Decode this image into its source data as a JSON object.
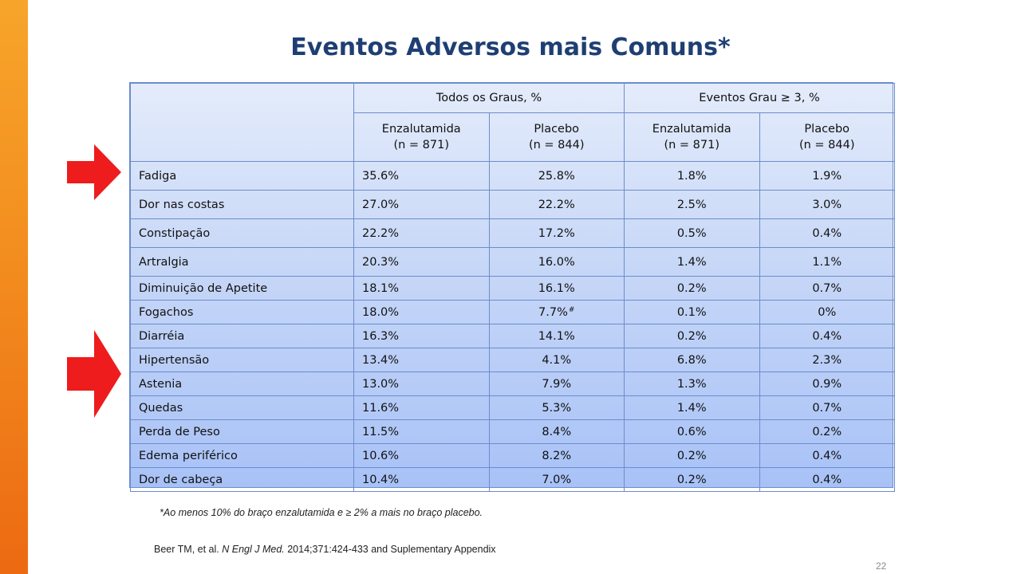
{
  "slide": {
    "title": "Eventos Adversos mais Comuns*",
    "page_number": "22",
    "accent_color": "#f28a1e",
    "arrow_color": "#ee1c1c",
    "title_color": "#1f3f73"
  },
  "table": {
    "group_headers": [
      "Todos os Graus, %",
      "Eventos Grau ≥ 3, %"
    ],
    "sub_headers": [
      {
        "name": "Enzalutamida",
        "n": "(n = 871)"
      },
      {
        "name": "Placebo",
        "n": "(n = 844)"
      },
      {
        "name": "Enzalutamida",
        "n": "(n = 871)"
      },
      {
        "name": "Placebo",
        "n": "(n = 844)"
      }
    ],
    "rows": [
      {
        "label": "Fadiga",
        "values": [
          "35.6%",
          "25.8%",
          "1.8%",
          "1.9%"
        ]
      },
      {
        "label": "Dor nas costas",
        "values": [
          "27.0%",
          "22.2%",
          "2.5%",
          "3.0%"
        ]
      },
      {
        "label": "Constipação",
        "values": [
          "22.2%",
          "17.2%",
          "0.5%",
          "0.4%"
        ]
      },
      {
        "label": "Artralgia",
        "values": [
          "20.3%",
          "16.0%",
          "1.4%",
          "1.1%"
        ]
      },
      {
        "label": "Diminuição de Apetite",
        "values": [
          "18.1%",
          "16.1%",
          "0.2%",
          "0.7%"
        ]
      },
      {
        "label": "Fogachos",
        "values": [
          "18.0%",
          "7.7%",
          "0.1%",
          "0%"
        ]
      },
      {
        "label": "Diarréia",
        "values": [
          "16.3%",
          "14.1%",
          "0.2%",
          "0.4%"
        ]
      },
      {
        "label": "Hipertensão",
        "values": [
          "13.4%",
          "4.1%",
          "6.8%",
          "2.3%"
        ]
      },
      {
        "label": "Astenia",
        "values": [
          "13.0%",
          "7.9%",
          "1.3%",
          "0.9%"
        ]
      },
      {
        "label": "Quedas",
        "values": [
          "11.6%",
          "5.3%",
          "1.4%",
          "0.7%"
        ]
      },
      {
        "label": "Perda de Peso",
        "values": [
          "11.5%",
          "8.4%",
          "0.6%",
          "0.2%"
        ]
      },
      {
        "label": "Edema periférico",
        "values": [
          "10.6%",
          "8.2%",
          "0.2%",
          "0.4%"
        ]
      },
      {
        "label": "Dor de cabeça",
        "values": [
          "10.4%",
          "7.0%",
          "0.2%",
          "0.4%"
        ]
      }
    ],
    "fogachos_placebo_mark": "#"
  },
  "arrows": [
    {
      "icon": "right-arrow-icon",
      "points_to": "Fadiga"
    },
    {
      "icon": "right-arrow-icon",
      "points_to": "Hipertensão"
    }
  ],
  "footnote": "*Ao menos 10% do braço enzalutamida e  ≥ 2% a mais no braço placebo.",
  "citation": {
    "authors": "Beer TM, et al.",
    "journal": "N Engl J Med.",
    "details": "2014;371:424-433 and Suplementary Appendix"
  }
}
